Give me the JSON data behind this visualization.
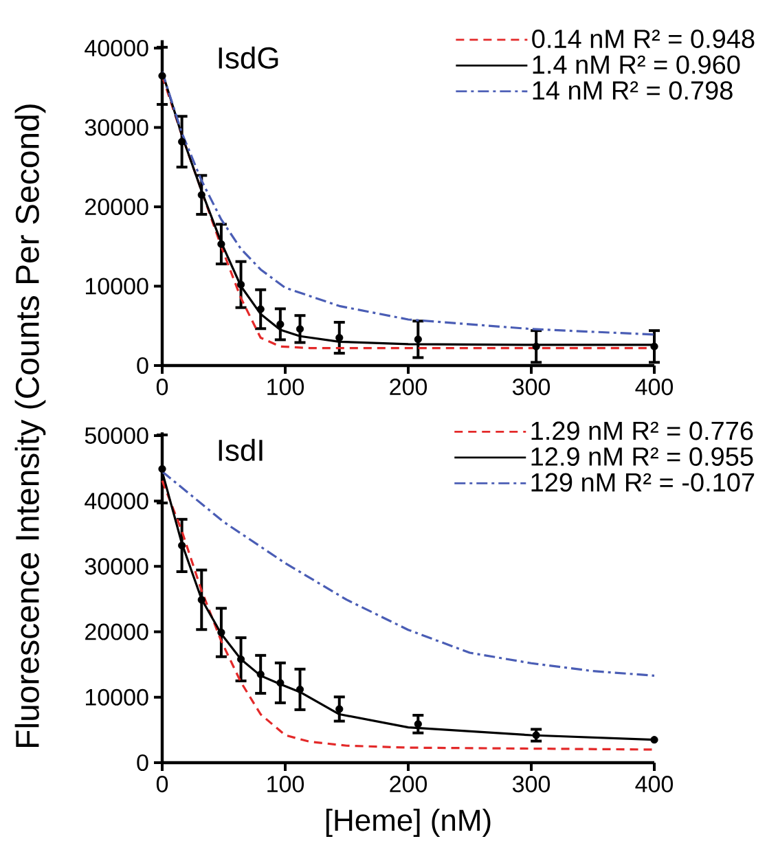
{
  "chart_data": [
    {
      "type": "line",
      "title": "IsdG",
      "ylabel": "Fluorescence Intensity (Counts Per Second)",
      "xlim": [
        0,
        400
      ],
      "ylim": [
        0,
        41000
      ],
      "xticks": [
        0,
        100,
        200,
        300,
        400
      ],
      "yticks": [
        0,
        10000,
        20000,
        30000,
        40000
      ],
      "grid": false,
      "legend": "top right",
      "series": [
        {
          "type": "scatter",
          "color": "#000000",
          "marker": "circle",
          "x": [
            0,
            16,
            32,
            48,
            64,
            80,
            96,
            112,
            144,
            208,
            304,
            400
          ],
          "values": [
            36500,
            28200,
            21500,
            15300,
            10200,
            7100,
            5200,
            4600,
            3500,
            3300,
            2400,
            2400
          ],
          "errors": [
            3600,
            3200,
            2450,
            2500,
            2900,
            2450,
            1950,
            1700,
            1950,
            2300,
            2000,
            2000
          ]
        },
        {
          "name": "0.14 nM   R² = 0.948",
          "color": "#e32929",
          "line_style": "dashed",
          "x": [
            0,
            16,
            32,
            48,
            64,
            80,
            96,
            120,
            200,
            400
          ],
          "values": [
            36500,
            29000,
            22000,
            15000,
            8500,
            3500,
            2400,
            2200,
            2200,
            2200
          ]
        },
        {
          "name": "1.4 nM   R² = 0.960",
          "color": "#000000",
          "line_style": "solid",
          "x": [
            0,
            16,
            32,
            48,
            64,
            80,
            96,
            112,
            144,
            200,
            300,
            400
          ],
          "values": [
            37000,
            29000,
            22000,
            15500,
            10000,
            6500,
            4500,
            3700,
            3000,
            2700,
            2600,
            2600
          ]
        },
        {
          "name": "14 nM   R² = 0.798",
          "color": "#4a5db5",
          "line_style": "dashdotted",
          "x": [
            0,
            16,
            32,
            48,
            64,
            80,
            100,
            144,
            200,
            300,
            400
          ],
          "values": [
            37000,
            29300,
            23300,
            18400,
            14700,
            12100,
            9800,
            7500,
            5800,
            4600,
            3900
          ]
        }
      ]
    },
    {
      "type": "line",
      "title": "IsdI",
      "xlabel": "[Heme] (nM)",
      "xlim": [
        0,
        400
      ],
      "ylim": [
        0,
        50500
      ],
      "xticks": [
        0,
        100,
        200,
        300,
        400
      ],
      "yticks": [
        0,
        10000,
        20000,
        30000,
        40000,
        50000
      ],
      "grid": false,
      "legend": "top right",
      "series": [
        {
          "type": "scatter",
          "color": "#000000",
          "marker": "circle",
          "x": [
            0,
            16,
            32,
            48,
            64,
            80,
            96,
            112,
            144,
            208,
            304,
            400
          ],
          "values": [
            44900,
            33200,
            24900,
            19900,
            15800,
            13500,
            12200,
            11200,
            8200,
            5900,
            4200,
            3500
          ],
          "errors": [
            5200,
            4000,
            4550,
            3700,
            3300,
            2900,
            3050,
            3100,
            1850,
            1350,
            900,
            null
          ]
        },
        {
          "name": "1.29 nM   R² = 0.776",
          "color": "#e32929",
          "line_style": "dashed",
          "x": [
            0,
            16,
            32,
            48,
            64,
            80,
            100,
            120,
            150,
            200,
            400
          ],
          "values": [
            43100,
            35400,
            26300,
            18600,
            12300,
            7400,
            4200,
            3200,
            2600,
            2300,
            2000
          ]
        },
        {
          "name": "12.9 nM   R² = 0.955",
          "color": "#000000",
          "line_style": "solid",
          "x": [
            0,
            16,
            32,
            48,
            64,
            80,
            96,
            112,
            144,
            200,
            300,
            400
          ],
          "values": [
            44500,
            33500,
            25000,
            19700,
            15800,
            13300,
            12000,
            10800,
            7400,
            5400,
            4200,
            3500
          ]
        },
        {
          "name": "129 nM   R² = -0.107",
          "color": "#4a5db5",
          "line_style": "dashdotted",
          "x": [
            0,
            50,
            100,
            150,
            200,
            250,
            300,
            350,
            400
          ],
          "values": [
            44500,
            36800,
            30500,
            24900,
            20300,
            16800,
            15200,
            14000,
            13300
          ]
        }
      ]
    }
  ]
}
